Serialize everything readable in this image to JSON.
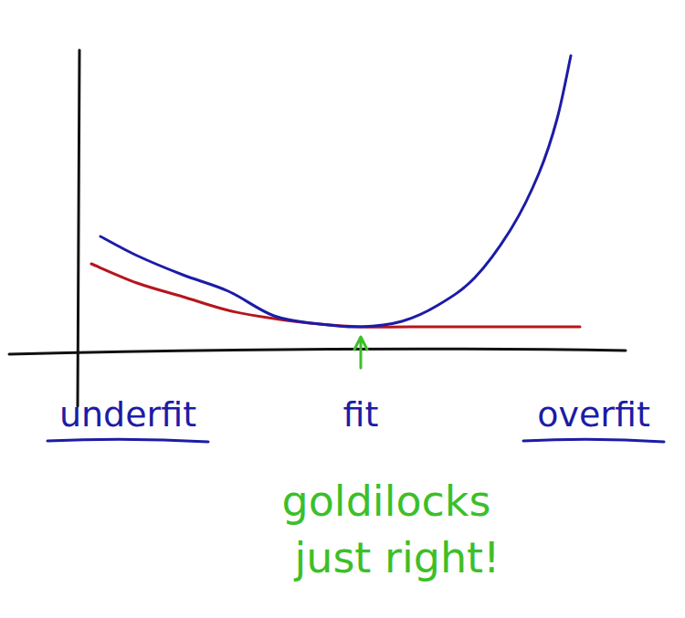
{
  "chart_data": {
    "type": "line",
    "xlim": [
      0,
      12
    ],
    "ylim": [
      0,
      11
    ],
    "xticks": [
      {
        "value": 1.1,
        "label": "underfit"
      },
      {
        "value": 6.2,
        "label": "fit"
      },
      {
        "value": 11.3,
        "label": "overfit"
      }
    ],
    "tick_labels": "x",
    "grid": false,
    "series": [
      {
        "color": "#1c1ca6",
        "x": [
          0.5,
          1.3,
          2.3,
          3.3,
          4.3,
          5.3,
          6.2,
          7.1,
          7.9,
          8.7,
          9.5,
          10.1,
          10.5,
          10.8
        ],
        "values": [
          4.2,
          3.5,
          2.8,
          2.2,
          1.3,
          1.0,
          0.9,
          1.1,
          1.7,
          2.7,
          4.5,
          6.5,
          8.5,
          10.8
        ]
      },
      {
        "color": "#b5161c",
        "x": [
          0.3,
          1.3,
          2.3,
          3.3,
          4.3,
          5.3,
          6.2,
          7.3,
          9.3,
          11.0
        ],
        "values": [
          3.2,
          2.5,
          2.0,
          1.5,
          1.2,
          1.0,
          0.9,
          0.9,
          0.9,
          0.9
        ]
      }
    ],
    "annotations": [
      "goldilocks",
      "just right!"
    ],
    "annotation_color": "#3cbf2a"
  }
}
